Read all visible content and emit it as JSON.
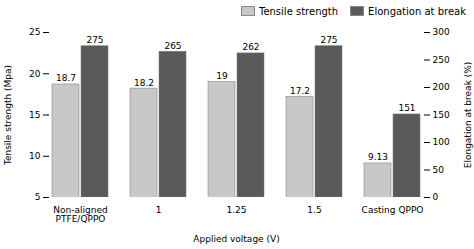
{
  "chart_data": {
    "type": "bar",
    "categories": [
      "Non-aligned\nPTFE/QPPO",
      "1",
      "1.25",
      "1.5",
      "Casting QPPO"
    ],
    "xlabel": "Applied voltage (V)",
    "ylabel": "Tensile strength (Mpa)",
    "y2label": "Elongation at break (%)",
    "series": [
      {
        "name": "Tensile strength",
        "color": "#c8c8c8",
        "values": [
          18.7,
          18.2,
          19,
          17.2,
          9.13
        ]
      },
      {
        "name": "Elongation at break",
        "color": "#5a5a5a",
        "axis": "y2",
        "values": [
          275,
          265,
          262,
          275,
          151
        ]
      }
    ],
    "ylim": [
      5,
      25
    ],
    "yticks": [
      5,
      10,
      15,
      20,
      25
    ],
    "y2lim": [
      0,
      300
    ],
    "y2ticks": [
      0,
      50,
      100,
      150,
      200,
      250,
      300
    ],
    "data_labels": true,
    "legend": "upper right",
    "grid": false
  }
}
